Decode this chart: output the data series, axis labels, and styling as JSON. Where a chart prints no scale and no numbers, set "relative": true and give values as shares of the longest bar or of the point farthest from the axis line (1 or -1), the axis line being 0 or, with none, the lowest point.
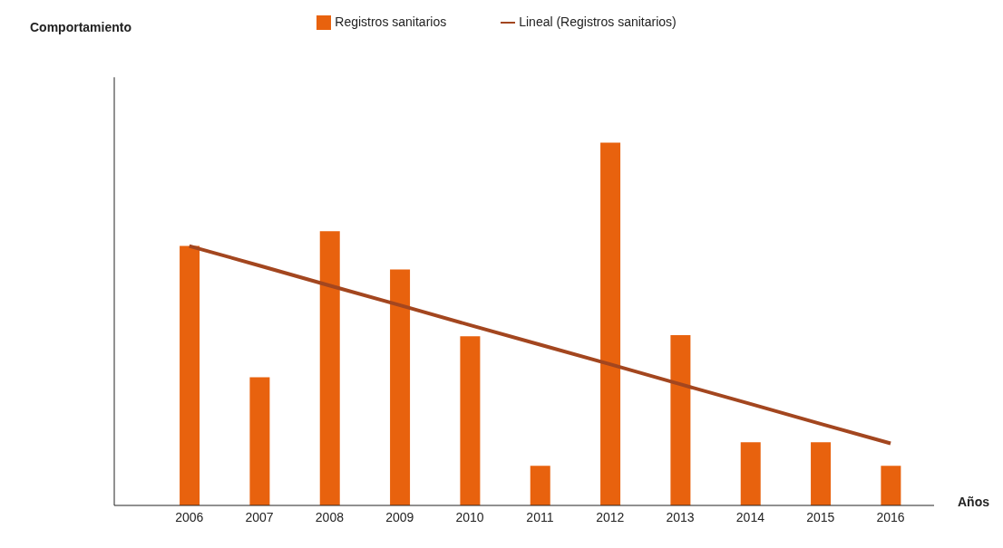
{
  "chart_data": {
    "type": "bar",
    "xlabel": "Años",
    "annotations": [
      "Comportamiento"
    ],
    "relative": true,
    "legend": "top",
    "grid": false,
    "categories": [
      "2006",
      "2007",
      "2008",
      "2009",
      "2010",
      "2011",
      "2012",
      "2013",
      "2014",
      "2015",
      "2016"
    ],
    "series": [
      {
        "name": "Registros sanitarios",
        "color": "#e8620e",
        "values": [
          0.715,
          0.353,
          0.756,
          0.65,
          0.466,
          0.109,
          1,
          0.469,
          0.174,
          0.174,
          0.109
        ]
      },
      {
        "name": "Lineal (Registros sanitarios)",
        "type": "line",
        "color": "#a3461f",
        "marker": "none",
        "line_style": "solid",
        "values": [
          0.715,
          0.661,
          0.606,
          0.552,
          0.497,
          0.443,
          0.389,
          0.334,
          0.28,
          0.225,
          0.171
        ]
      }
    ]
  }
}
